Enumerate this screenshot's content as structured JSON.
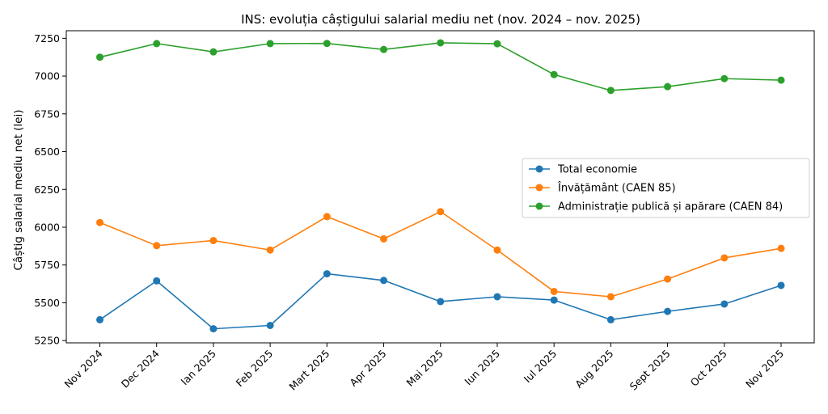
{
  "chart_data": {
    "type": "line",
    "title": "INS: evoluția câștigului salarial mediu net (nov. 2024 – nov. 2025)",
    "xlabel": "",
    "ylabel": "Câștig salarial mediu net (lei)",
    "categories": [
      "Nov 2024",
      "Dec 2024",
      "Ian 2025",
      "Feb 2025",
      "Mart 2025",
      "Apr 2025",
      "Mai 2025",
      "Iun 2025",
      "Iul 2025",
      "Aug 2025",
      "Sept 2025",
      "Oct 2025",
      "Nov 2025"
    ],
    "ylim": [
      5235,
      7300
    ],
    "yticks": [
      5250,
      5500,
      5750,
      6000,
      6250,
      6500,
      6750,
      7000,
      7250
    ],
    "grid": false,
    "legend_position": "center-right",
    "series": [
      {
        "name": "Total economie",
        "color": "#1f77b4",
        "values": [
          5388,
          5645,
          5328,
          5350,
          5692,
          5648,
          5508,
          5540,
          5518,
          5388,
          5443,
          5492,
          5615
        ]
      },
      {
        "name": "Învățământ (CAEN 85)",
        "color": "#ff7f0e",
        "values": [
          6031,
          5878,
          5912,
          5849,
          6070,
          5923,
          6103,
          5849,
          5575,
          5540,
          5657,
          5797,
          5860
        ]
      },
      {
        "name": "Administrație publică și apărare (CAEN 84)",
        "color": "#2ca02c",
        "values": [
          7125,
          7215,
          7160,
          7215,
          7216,
          7176,
          7220,
          7214,
          7010,
          6905,
          6930,
          6983,
          6973
        ]
      }
    ]
  }
}
